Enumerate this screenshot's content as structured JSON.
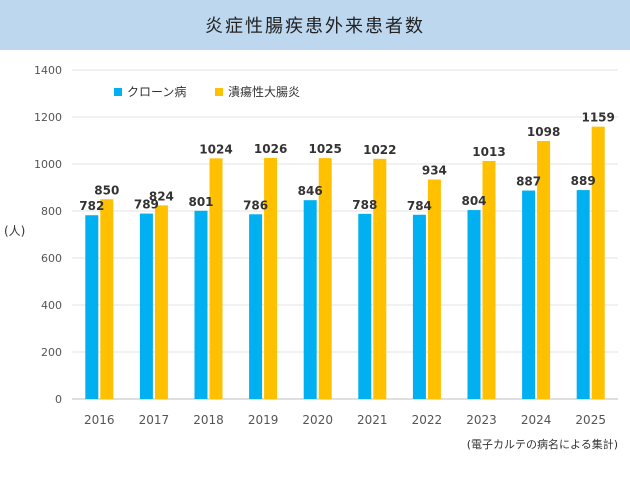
{
  "title": "炎症性腸疾患外来患者数",
  "y_unit_label": "(人)",
  "footnote": "(電子カルテの病名による集計)",
  "colors": {
    "crohn": "#00b0f0",
    "uc": "#ffc000",
    "title_bg": "#bdd7ee"
  },
  "chart_data": {
    "type": "bar",
    "categories": [
      "2016",
      "2017",
      "2018",
      "2019",
      "2020",
      "2021",
      "2022",
      "2023",
      "2024",
      "2025"
    ],
    "series": [
      {
        "name": "クローン病",
        "color": "#00b0f0",
        "values": [
          782,
          789,
          801,
          786,
          846,
          788,
          784,
          804,
          887,
          889
        ]
      },
      {
        "name": "潰瘍性大腸炎",
        "color": "#ffc000",
        "values": [
          850,
          824,
          1024,
          1026,
          1025,
          1022,
          934,
          1013,
          1098,
          1159
        ]
      }
    ],
    "yticks": [
      0,
      200,
      400,
      600,
      800,
      1000,
      1200,
      1400
    ],
    "ylim": [
      0,
      1400
    ],
    "grid": true,
    "legend": "top-left"
  }
}
